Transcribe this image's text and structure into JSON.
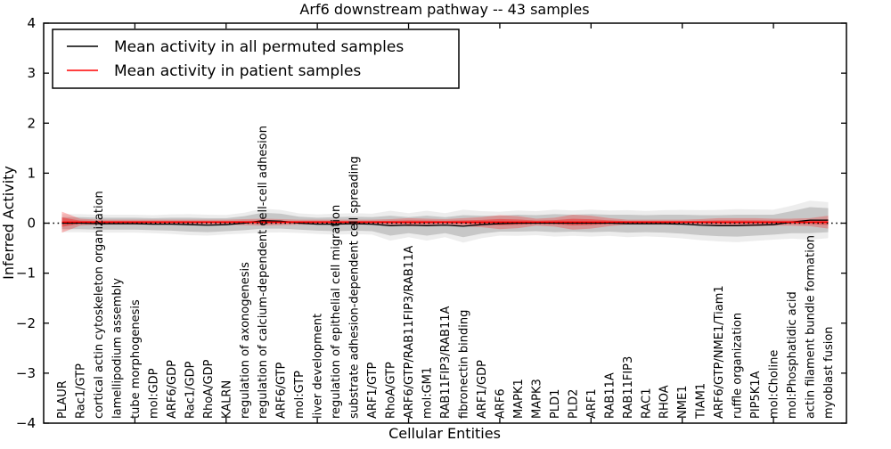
{
  "chart_data": {
    "type": "line",
    "title": "Arf6 downstream pathway -- 43 samples",
    "xlabel": "Cellular Entities",
    "ylabel": "Inferred Activity",
    "ylim": [
      -4,
      4
    ],
    "yticks": [
      4,
      3,
      2,
      1,
      0,
      -1,
      -2,
      -3,
      -4
    ],
    "xtick_units": [
      5,
      10,
      15,
      20,
      25,
      30,
      35,
      40
    ],
    "grid": false,
    "legend_position": "upper left",
    "zero_line": 0,
    "legend": [
      {
        "label": "Mean activity in all permuted samples",
        "color": "#000000"
      },
      {
        "label": "Mean activity in patient samples",
        "color": "#ff0000"
      }
    ],
    "categories": [
      "PLAUR",
      "Rac1/GTP",
      "cortical actin cytoskeleton organization",
      "lamellipodium assembly",
      "tube morphogenesis",
      "mol:GDP",
      "ARF6/GDP",
      "Rac1/GDP",
      "RhoA/GDP",
      "KALRN",
      "regulation of axonogenesis",
      "regulation of calcium-dependent cell-cell adhesion",
      "ARF6/GTP",
      "mol:GTP",
      "liver development",
      "regulation of epithelial cell migration",
      "substrate adhesion-dependent cell spreading",
      "ARF1/GTP",
      "RhoA/GTP",
      "ARF6/GTP/RAB11FIP3/RAB11A",
      "mol:GM1",
      "RAB11FIP3/RAB11A",
      "fibronectin binding",
      "ARF1/GDP",
      "ARF6",
      "MAPK1",
      "MAPK3",
      "PLD1",
      "PLD2",
      "ARF1",
      "RAB11A",
      "RAB11FIP3",
      "RAC1",
      "RHOA",
      "NME1",
      "TIAM1",
      "ARF6/GTP/NME1/Tiam1",
      "ruffle organization",
      "PIP5K1A",
      "mol:Choline",
      "mol:Phosphatidic acid",
      "actin filament bundle formation",
      "myoblast fusion"
    ],
    "series": [
      {
        "name": "Mean activity in all permuted samples",
        "color": "#000000",
        "values": [
          0.0,
          0.0,
          -0.01,
          -0.01,
          -0.01,
          -0.02,
          -0.02,
          -0.03,
          -0.04,
          -0.03,
          0.0,
          0.05,
          0.04,
          0.0,
          -0.02,
          -0.02,
          -0.01,
          -0.02,
          -0.05,
          -0.04,
          -0.05,
          -0.04,
          -0.06,
          -0.03,
          -0.01,
          0.0,
          0.0,
          0.0,
          0.0,
          0.0,
          0.0,
          -0.01,
          -0.01,
          -0.01,
          -0.02,
          -0.04,
          -0.05,
          -0.05,
          -0.04,
          -0.03,
          0.02,
          0.06,
          0.06
        ],
        "band_halfwidth": [
          0.12,
          0.12,
          0.12,
          0.12,
          0.12,
          0.12,
          0.13,
          0.14,
          0.14,
          0.13,
          0.14,
          0.16,
          0.15,
          0.13,
          0.13,
          0.14,
          0.14,
          0.14,
          0.2,
          0.16,
          0.2,
          0.16,
          0.22,
          0.18,
          0.16,
          0.17,
          0.16,
          0.18,
          0.17,
          0.18,
          0.17,
          0.18,
          0.17,
          0.18,
          0.19,
          0.2,
          0.21,
          0.22,
          0.21,
          0.2,
          0.22,
          0.26,
          0.24
        ]
      },
      {
        "name": "Mean activity in patient samples",
        "color": "#ff0000",
        "values": [
          0.02,
          0.02,
          0.02,
          0.02,
          0.02,
          0.02,
          0.02,
          0.02,
          0.02,
          0.02,
          0.02,
          0.02,
          0.02,
          0.02,
          0.02,
          0.02,
          0.02,
          0.02,
          0.02,
          0.02,
          0.02,
          0.02,
          0.02,
          0.02,
          0.02,
          0.02,
          0.02,
          0.02,
          0.02,
          0.02,
          0.02,
          0.02,
          0.02,
          0.02,
          0.02,
          0.02,
          0.02,
          0.02,
          0.02,
          0.02,
          0.02,
          0.02,
          0.02
        ],
        "band_halfwidth": [
          0.21,
          0.07,
          0.05,
          0.05,
          0.05,
          0.05,
          0.05,
          0.05,
          0.05,
          0.05,
          0.06,
          0.07,
          0.06,
          0.05,
          0.05,
          0.05,
          0.05,
          0.05,
          0.06,
          0.08,
          0.07,
          0.06,
          0.08,
          0.1,
          0.14,
          0.12,
          0.07,
          0.09,
          0.15,
          0.13,
          0.08,
          0.05,
          0.05,
          0.05,
          0.05,
          0.06,
          0.08,
          0.08,
          0.08,
          0.07,
          0.07,
          0.08,
          0.13
        ]
      }
    ]
  },
  "colors": {
    "frame": "#000000",
    "permuted_line": "#000000",
    "patient_line": "#ff0000",
    "permuted_band": "rgba(0,0,0,0.16)",
    "permuted_band_outer": "rgba(0,0,0,0.07)",
    "patient_band": "rgba(255,0,0,0.25)",
    "patient_band_inner": "rgba(255,0,0,0.38)",
    "background": "#ffffff"
  }
}
